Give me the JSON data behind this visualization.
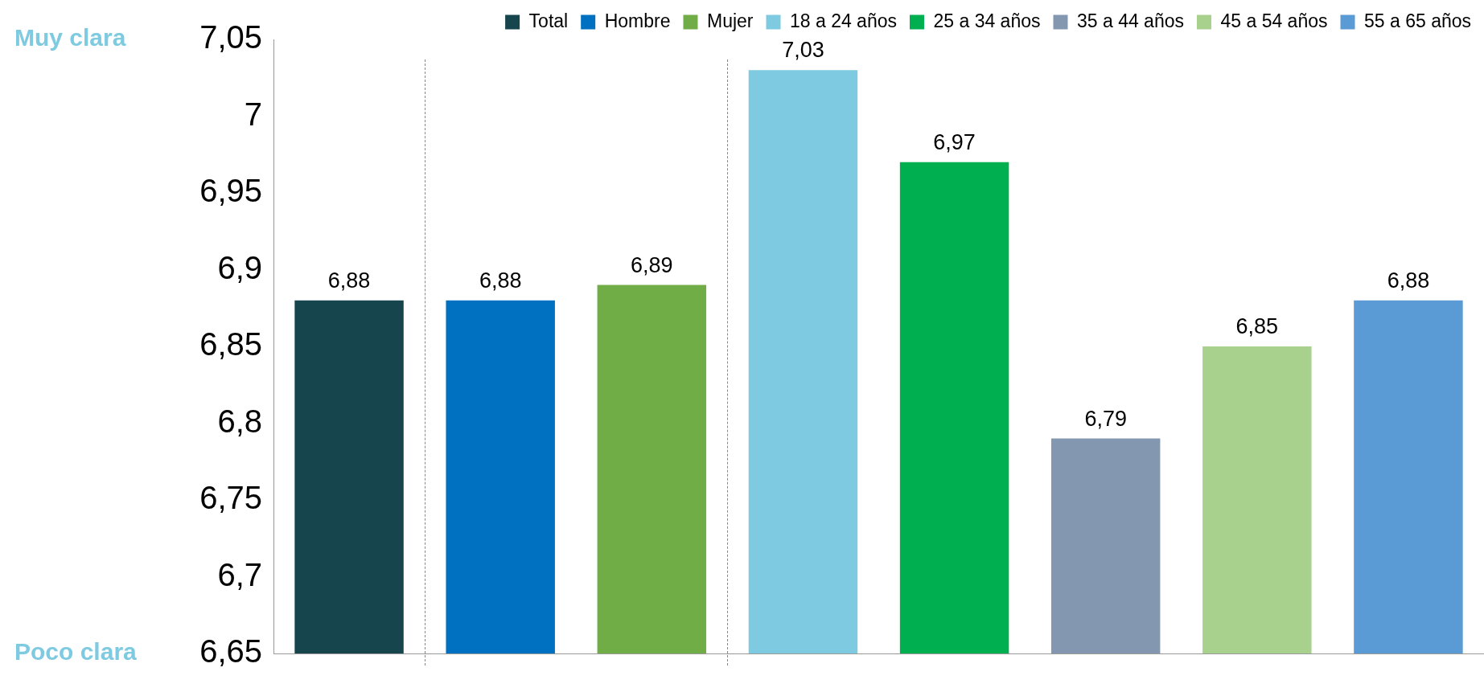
{
  "chart_data": {
    "type": "bar",
    "categories": [
      null,
      null,
      null,
      null,
      null,
      null,
      null,
      null
    ],
    "series": [
      {
        "name": "Total",
        "color": "#17454d",
        "values": [
          6.88,
          null,
          null,
          null,
          null,
          null,
          null,
          null
        ],
        "value_labels": [
          "6,88",
          null,
          null,
          null,
          null,
          null,
          null,
          null
        ]
      },
      {
        "name": "Hombre",
        "color": "#0070c0",
        "values": [
          null,
          6.88,
          null,
          null,
          null,
          null,
          null,
          null
        ],
        "value_labels": [
          null,
          "6,88",
          null,
          null,
          null,
          null,
          null,
          null
        ]
      },
      {
        "name": "Mujer",
        "color": "#70ad47",
        "values": [
          null,
          null,
          6.89,
          null,
          null,
          null,
          null,
          null
        ],
        "value_labels": [
          null,
          null,
          "6,89",
          null,
          null,
          null,
          null,
          null
        ]
      },
      {
        "name": "18 a 24 años",
        "color": "#7ecae1",
        "values": [
          null,
          null,
          null,
          7.03,
          null,
          null,
          null,
          null
        ],
        "value_labels": [
          null,
          null,
          null,
          "7,03",
          null,
          null,
          null,
          null
        ]
      },
      {
        "name": "25 a 34 años",
        "color": "#00b050",
        "values": [
          null,
          null,
          null,
          null,
          6.97,
          null,
          null,
          null
        ],
        "value_labels": [
          null,
          null,
          null,
          null,
          "6,97",
          null,
          null,
          null
        ]
      },
      {
        "name": "35 a 44 años",
        "color": "#8497b0",
        "values": [
          null,
          null,
          null,
          null,
          null,
          6.79,
          null,
          null
        ],
        "value_labels": [
          null,
          null,
          null,
          null,
          null,
          "6,79",
          null,
          null
        ]
      },
      {
        "name": "45 a 54 años",
        "color": "#a9d18e",
        "values": [
          null,
          null,
          null,
          null,
          null,
          null,
          6.85,
          null
        ],
        "value_labels": [
          null,
          null,
          null,
          null,
          null,
          null,
          "6,85",
          null
        ]
      },
      {
        "name": "55 a 65 años",
        "color": "#5b9bd5",
        "values": [
          null,
          null,
          null,
          null,
          null,
          null,
          null,
          6.88
        ],
        "value_labels": [
          null,
          null,
          null,
          null,
          null,
          null,
          null,
          "6,88"
        ]
      }
    ],
    "ylim": [
      6.65,
      7.05
    ],
    "yticks": [
      {
        "value": 6.65,
        "label": "6,65"
      },
      {
        "value": 6.7,
        "label": "6,7"
      },
      {
        "value": 6.75,
        "label": "6,75"
      },
      {
        "value": 6.8,
        "label": "6,8"
      },
      {
        "value": 6.85,
        "label": "6,85"
      },
      {
        "value": 6.9,
        "label": "6,9"
      },
      {
        "value": 6.95,
        "label": "6,95"
      },
      {
        "value": 7,
        "label": "7"
      },
      {
        "value": 7.05,
        "label": "7,05"
      }
    ],
    "annotations": [
      "Muy clara",
      "Poco clara"
    ],
    "stacked": true,
    "grid": false,
    "legend": "top right",
    "tick_labels": "y"
  }
}
